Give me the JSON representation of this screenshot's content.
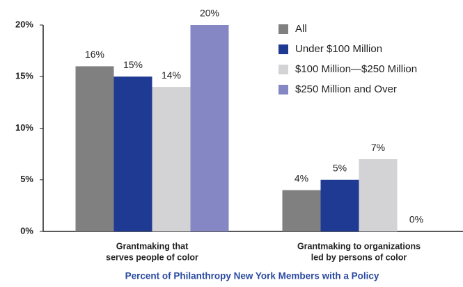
{
  "chart_data": {
    "type": "bar",
    "categories": [
      [
        "Grantmaking that",
        "serves people of color"
      ],
      [
        "Grantmaking to organizations",
        "led by persons of color"
      ]
    ],
    "series": [
      {
        "name": "All",
        "color": "#808080",
        "values": [
          16,
          4
        ],
        "value_labels": [
          "16%",
          "4%"
        ]
      },
      {
        "name": "Under $100 Million",
        "color": "#1f3a93",
        "values": [
          15,
          5
        ],
        "value_labels": [
          "15%",
          "5%"
        ]
      },
      {
        "name": "$100 Million—$250 Million",
        "color": "#d3d3d5",
        "values": [
          14,
          7
        ],
        "value_labels": [
          "14%",
          "7%"
        ]
      },
      {
        "name": "$250 Million and Over",
        "color": "#8587c4",
        "values": [
          20,
          0
        ],
        "value_labels": [
          "20%",
          "0%"
        ]
      }
    ],
    "x_label": "Percent of Philanthropy New York Members with a Policy",
    "ylim": [
      0,
      20
    ],
    "yticks": [
      {
        "value": 0,
        "label": "0%"
      },
      {
        "value": 5,
        "label": "5%"
      },
      {
        "value": 10,
        "label": "10%"
      },
      {
        "value": 15,
        "label": "15%"
      },
      {
        "value": 20,
        "label": "20%"
      }
    ],
    "legend": "upper right"
  }
}
